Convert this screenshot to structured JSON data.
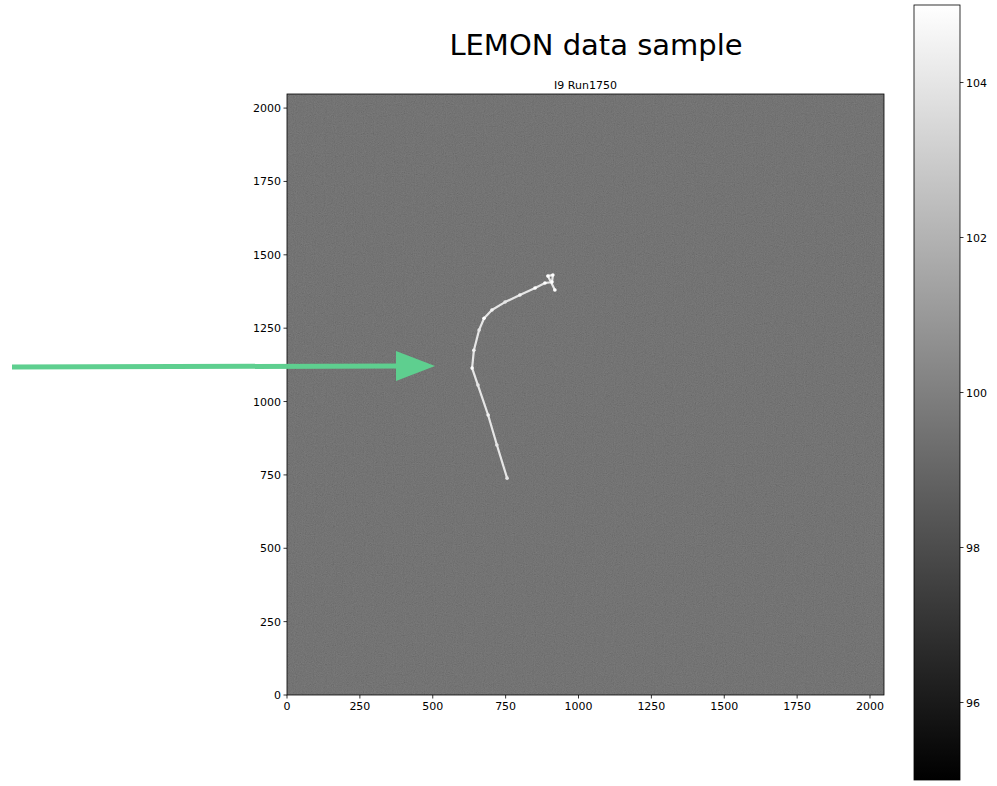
{
  "chart_data": {
    "type": "heatmap",
    "suptitle": "LEMON data sample",
    "title": "I9 Run1750",
    "xlim": [
      0,
      2048
    ],
    "ylim": [
      0,
      2048
    ],
    "xticks": [
      0,
      250,
      500,
      750,
      1000,
      1250,
      1500,
      1750,
      2000
    ],
    "yticks": [
      0,
      250,
      500,
      750,
      1000,
      1250,
      1500,
      1750,
      2000
    ],
    "background_value": 99,
    "track": {
      "x": [
        755,
        720,
        690,
        655,
        635,
        641,
        659,
        676,
        703,
        748,
        799,
        851,
        885,
        909,
        912,
        895,
        919
      ],
      "y": [
        739,
        852,
        954,
        1056,
        1114,
        1175,
        1244,
        1284,
        1312,
        1339,
        1363,
        1387,
        1404,
        1407,
        1431,
        1428,
        1380
      ],
      "values": [
        104,
        104,
        104.5,
        104,
        105,
        104.5,
        104,
        105,
        104.5,
        104,
        104.5,
        105,
        105,
        105,
        105,
        105,
        105
      ]
    },
    "colorbar": {
      "range": [
        95,
        105
      ],
      "ticks": [
        96,
        98,
        100,
        102,
        104
      ]
    }
  }
}
